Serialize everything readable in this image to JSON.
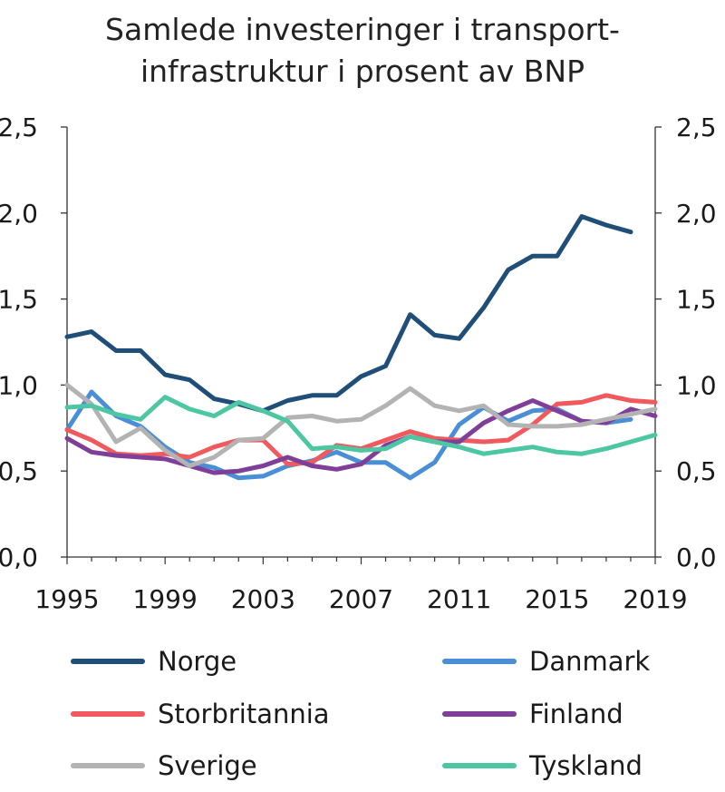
{
  "chart_data": {
    "type": "line",
    "title_lines": [
      "Samlede investeringer i transport-",
      "infrastruktur i prosent av BNP"
    ],
    "xlabel": "",
    "ylabel": "",
    "xlim": [
      1995,
      2019
    ],
    "ylim": [
      0,
      2.5
    ],
    "x_ticks": [
      "1995",
      "1999",
      "2003",
      "2007",
      "2011",
      "2015",
      "2019"
    ],
    "x_tick_values": [
      1995,
      1999,
      2003,
      2007,
      2011,
      2015,
      2019
    ],
    "y_ticks": [
      "0,0",
      "0,5",
      "1,0",
      "1,5",
      "2,0",
      "2,5"
    ],
    "y_tick_values": [
      0,
      0.5,
      1.0,
      1.5,
      2.0,
      2.5
    ],
    "grid": false,
    "series": [
      {
        "name": "Norge",
        "color": "#1f4e79",
        "x": [
          1995,
          1996,
          1997,
          1998,
          1999,
          2000,
          2001,
          2002,
          2003,
          2004,
          2005,
          2006,
          2007,
          2008,
          2009,
          2010,
          2011,
          2012,
          2013,
          2014,
          2015,
          2016,
          2017,
          2018
        ],
        "values": [
          1.28,
          1.31,
          1.2,
          1.2,
          1.06,
          1.03,
          0.92,
          0.89,
          0.85,
          0.91,
          0.94,
          0.94,
          1.05,
          1.11,
          1.41,
          1.29,
          1.27,
          1.45,
          1.67,
          1.75,
          1.75,
          1.98,
          1.93,
          1.89
        ]
      },
      {
        "name": "Danmark",
        "color": "#4a8fd6",
        "x": [
          1995,
          1996,
          1997,
          1998,
          1999,
          2000,
          2001,
          2002,
          2003,
          2004,
          2005,
          2006,
          2007,
          2008,
          2009,
          2010,
          2011,
          2012,
          2013,
          2014,
          2015,
          2016,
          2017,
          2018
        ],
        "values": [
          0.74,
          0.96,
          0.82,
          0.76,
          0.64,
          0.55,
          0.52,
          0.46,
          0.47,
          0.53,
          0.56,
          0.61,
          0.55,
          0.55,
          0.46,
          0.55,
          0.77,
          0.87,
          0.79,
          0.85,
          0.86,
          0.79,
          0.78,
          0.8
        ]
      },
      {
        "name": "Storbritannia",
        "color": "#f05a5f",
        "x": [
          1995,
          1996,
          1997,
          1998,
          1999,
          2000,
          2001,
          2002,
          2003,
          2004,
          2005,
          2006,
          2007,
          2008,
          2009,
          2010,
          2011,
          2012,
          2013,
          2014,
          2015,
          2016,
          2017,
          2018,
          2019
        ],
        "values": [
          0.74,
          0.68,
          0.6,
          0.59,
          0.6,
          0.58,
          0.64,
          0.68,
          0.68,
          0.54,
          0.55,
          0.65,
          0.63,
          0.68,
          0.73,
          0.69,
          0.68,
          0.67,
          0.68,
          0.77,
          0.89,
          0.9,
          0.94,
          0.91,
          0.9
        ]
      },
      {
        "name": "Finland",
        "color": "#7f3f98",
        "x": [
          1995,
          1996,
          1997,
          1998,
          1999,
          2000,
          2001,
          2002,
          2003,
          2004,
          2005,
          2006,
          2007,
          2008,
          2009,
          2010,
          2011,
          2012,
          2013,
          2014,
          2015,
          2016,
          2017,
          2018,
          2019
        ],
        "values": [
          0.69,
          0.61,
          0.59,
          0.58,
          0.57,
          0.53,
          0.49,
          0.5,
          0.53,
          0.58,
          0.53,
          0.51,
          0.54,
          0.65,
          0.7,
          0.67,
          0.67,
          0.78,
          0.85,
          0.91,
          0.85,
          0.79,
          0.78,
          0.86,
          0.82
        ]
      },
      {
        "name": "Sverige",
        "color": "#b3b3b3",
        "x": [
          1995,
          1996,
          1997,
          1998,
          1999,
          2000,
          2001,
          2002,
          2003,
          2004,
          2005,
          2006,
          2007,
          2008,
          2009,
          2010,
          2011,
          2012,
          2013,
          2014,
          2015,
          2016,
          2017,
          2018,
          2019
        ],
        "values": [
          1.0,
          0.89,
          0.67,
          0.75,
          0.62,
          0.53,
          0.58,
          0.68,
          0.69,
          0.81,
          0.82,
          0.79,
          0.8,
          0.88,
          0.98,
          0.88,
          0.85,
          0.88,
          0.77,
          0.76,
          0.76,
          0.77,
          0.8,
          0.83,
          0.86
        ]
      },
      {
        "name": "Tyskland",
        "color": "#4cc7a2",
        "x": [
          1995,
          1996,
          1997,
          1998,
          1999,
          2000,
          2001,
          2002,
          2003,
          2004,
          2005,
          2006,
          2007,
          2008,
          2009,
          2010,
          2011,
          2012,
          2013,
          2014,
          2015,
          2016,
          2017,
          2018,
          2019
        ],
        "values": [
          0.87,
          0.88,
          0.83,
          0.8,
          0.93,
          0.86,
          0.82,
          0.9,
          0.85,
          0.79,
          0.63,
          0.64,
          0.62,
          0.63,
          0.7,
          0.67,
          0.64,
          0.6,
          0.62,
          0.64,
          0.61,
          0.6,
          0.63,
          0.67,
          0.71
        ]
      }
    ],
    "legend": {
      "position": "bottom",
      "items": [
        "Norge",
        "Danmark",
        "Storbritannia",
        "Finland",
        "Sverige",
        "Tyskland"
      ]
    }
  }
}
